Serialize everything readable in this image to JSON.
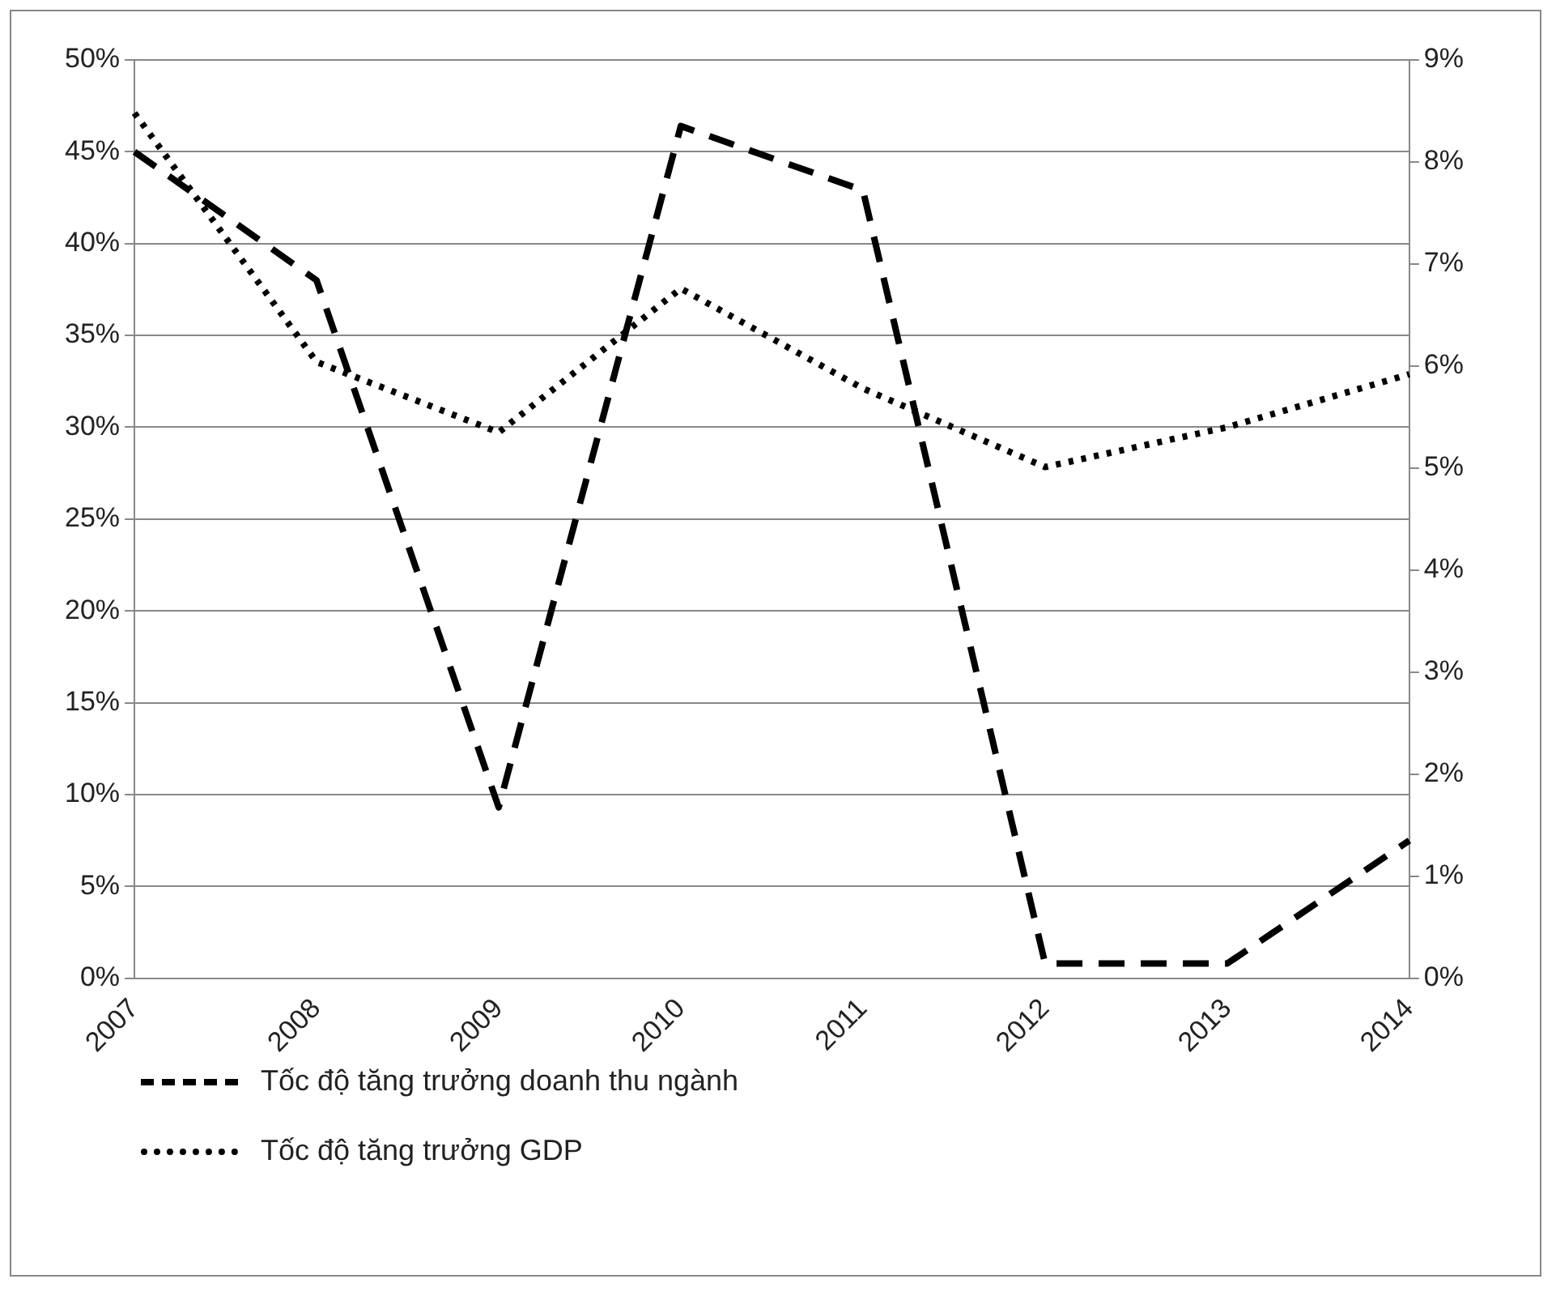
{
  "chart_data": {
    "type": "line",
    "categories": [
      "2007",
      "2008",
      "2009",
      "2010",
      "2011",
      "2012",
      "2013",
      "2014"
    ],
    "series": [
      {
        "name": "Tốc độ tăng trưởng doanh thu ngành",
        "color": "#000000",
        "line_style": "dashed",
        "values": [
          45,
          38,
          9.3,
          46.4,
          42.9,
          0.8,
          0.8,
          7.5
        ]
      },
      {
        "name": "Tốc độ tăng trưởng GDP",
        "color": "#000000",
        "line_style": "dotted",
        "axis": "y2",
        "values": [
          8.48,
          6.04,
          5.35,
          6.76,
          5.78,
          5.01,
          5.4,
          5.92
        ]
      }
    ],
    "ylim": [
      0,
      50
    ],
    "yticks": [
      {
        "value": 0,
        "label": "0%"
      },
      {
        "value": 5,
        "label": "5%"
      },
      {
        "value": 10,
        "label": "10%"
      },
      {
        "value": 15,
        "label": "15%"
      },
      {
        "value": 20,
        "label": "20%"
      },
      {
        "value": 25,
        "label": "25%"
      },
      {
        "value": 30,
        "label": "30%"
      },
      {
        "value": 35,
        "label": "35%"
      },
      {
        "value": 40,
        "label": "40%"
      },
      {
        "value": 45,
        "label": "45%"
      },
      {
        "value": 50,
        "label": "50%"
      }
    ],
    "y2lim": [
      0,
      9
    ],
    "y2ticks": [
      {
        "value": 0,
        "label": "0%"
      },
      {
        "value": 1,
        "label": "1%"
      },
      {
        "value": 2,
        "label": "2%"
      },
      {
        "value": 3,
        "label": "3%"
      },
      {
        "value": 4,
        "label": "4%"
      },
      {
        "value": 5,
        "label": "5%"
      },
      {
        "value": 6,
        "label": "6%"
      },
      {
        "value": 7,
        "label": "7%"
      },
      {
        "value": 8,
        "label": "8%"
      },
      {
        "value": 9,
        "label": "9%"
      }
    ],
    "grid": "y",
    "legend": "bottom left",
    "marker": "none"
  }
}
